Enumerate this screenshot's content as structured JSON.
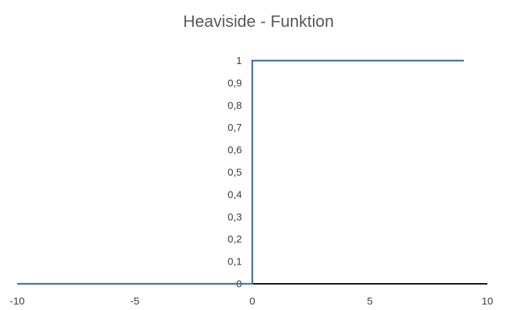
{
  "chart_data": {
    "type": "line",
    "title": "Heaviside - Funktion",
    "xlabel": "",
    "ylabel": "",
    "xlim": [
      -10,
      10
    ],
    "ylim": [
      0,
      1
    ],
    "x_ticks": [
      -10,
      -5,
      0,
      5,
      10
    ],
    "x_tick_labels": [
      "-10",
      "-5",
      "0",
      "5",
      "10"
    ],
    "y_ticks": [
      0,
      0.1,
      0.2,
      0.3,
      0.4,
      0.5,
      0.6,
      0.7,
      0.8,
      0.9,
      1
    ],
    "y_tick_labels": [
      "0",
      "0,1",
      "0,2",
      "0,3",
      "0,4",
      "0,5",
      "0,6",
      "0,7",
      "0,8",
      "0,9",
      "1"
    ],
    "grid": false,
    "legend": "none",
    "series": [
      {
        "x": [
          -10,
          0,
          0,
          9
        ],
        "y": [
          0,
          0,
          1,
          1
        ],
        "color": "#4a6fa5"
      }
    ],
    "axis_color": "#000000"
  }
}
